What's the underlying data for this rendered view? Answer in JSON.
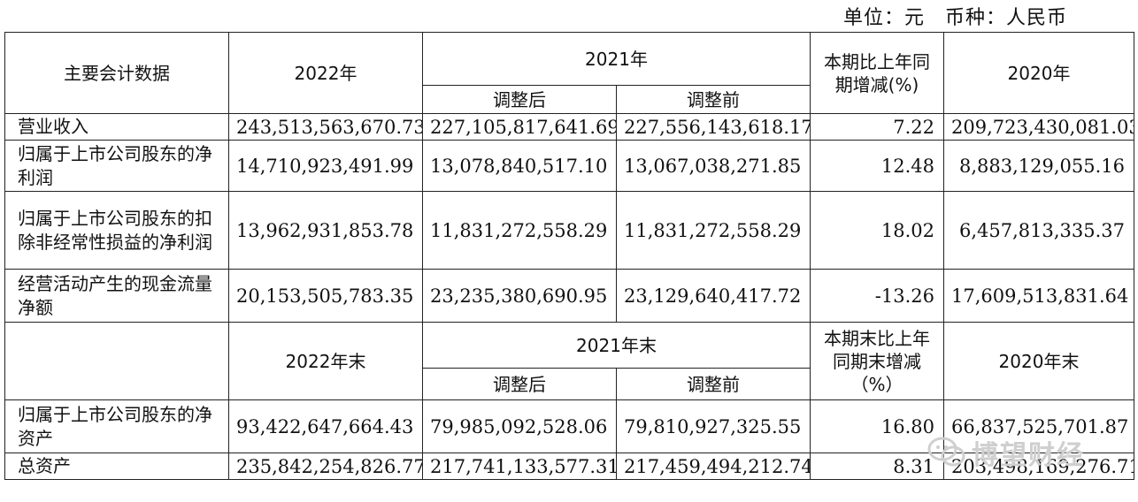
{
  "unit_line": "单位：元　币种：人民币",
  "section1": {
    "header": {
      "item": "主要会计数据",
      "y2022": "2022年",
      "y2021": "2021年",
      "adjusted_after": "调整后",
      "adjusted_before": "调整前",
      "change": "本期比上年同期增减(%)",
      "y2020": "2020年"
    },
    "rows": [
      {
        "label": "营业收入",
        "v2022": "243,513,563,670.73",
        "v2021_after": "227,105,817,641.69",
        "v2021_before": "227,556,143,618.17",
        "change": "7.22",
        "v2020": "209,723,430,081.03"
      },
      {
        "label": "归属于上市公司股东的净利润",
        "v2022": "14,710,923,491.99",
        "v2021_after": "13,078,840,517.10",
        "v2021_before": "13,067,038,271.85",
        "change": "12.48",
        "v2020": "8,883,129,055.16"
      },
      {
        "label": "归属于上市公司股东的扣除非经常性损益的净利润",
        "v2022": "13,962,931,853.78",
        "v2021_after": "11,831,272,558.29",
        "v2021_before": "11,831,272,558.29",
        "change": "18.02",
        "v2020": "6,457,813,335.37"
      },
      {
        "label": "经营活动产生的现金流量净额",
        "v2022": "20,153,505,783.35",
        "v2021_after": "23,235,380,690.95",
        "v2021_before": "23,129,640,417.72",
        "change": "-13.26",
        "v2020": "17,609,513,831.64"
      }
    ]
  },
  "section2": {
    "header": {
      "y2022": "2022年末",
      "y2021": "2021年末",
      "adjusted_after": "调整后",
      "adjusted_before": "调整前",
      "change": "本期末比上年同期末增减（%）",
      "y2020": "2020年末"
    },
    "rows": [
      {
        "label": "归属于上市公司股东的净资产",
        "v2022": "93,422,647,664.43",
        "v2021_after": "79,985,092,528.06",
        "v2021_before": "79,810,927,325.55",
        "change": "16.80",
        "v2020": "66,837,525,701.87"
      },
      {
        "label": "总资产",
        "v2022": "235,842,254,826.77",
        "v2021_after": "217,741,133,577.31",
        "v2021_before": "217,459,494,212.74",
        "change": "8.31",
        "v2020": "203,498,169,276.71"
      }
    ]
  },
  "watermark": "博望财经"
}
